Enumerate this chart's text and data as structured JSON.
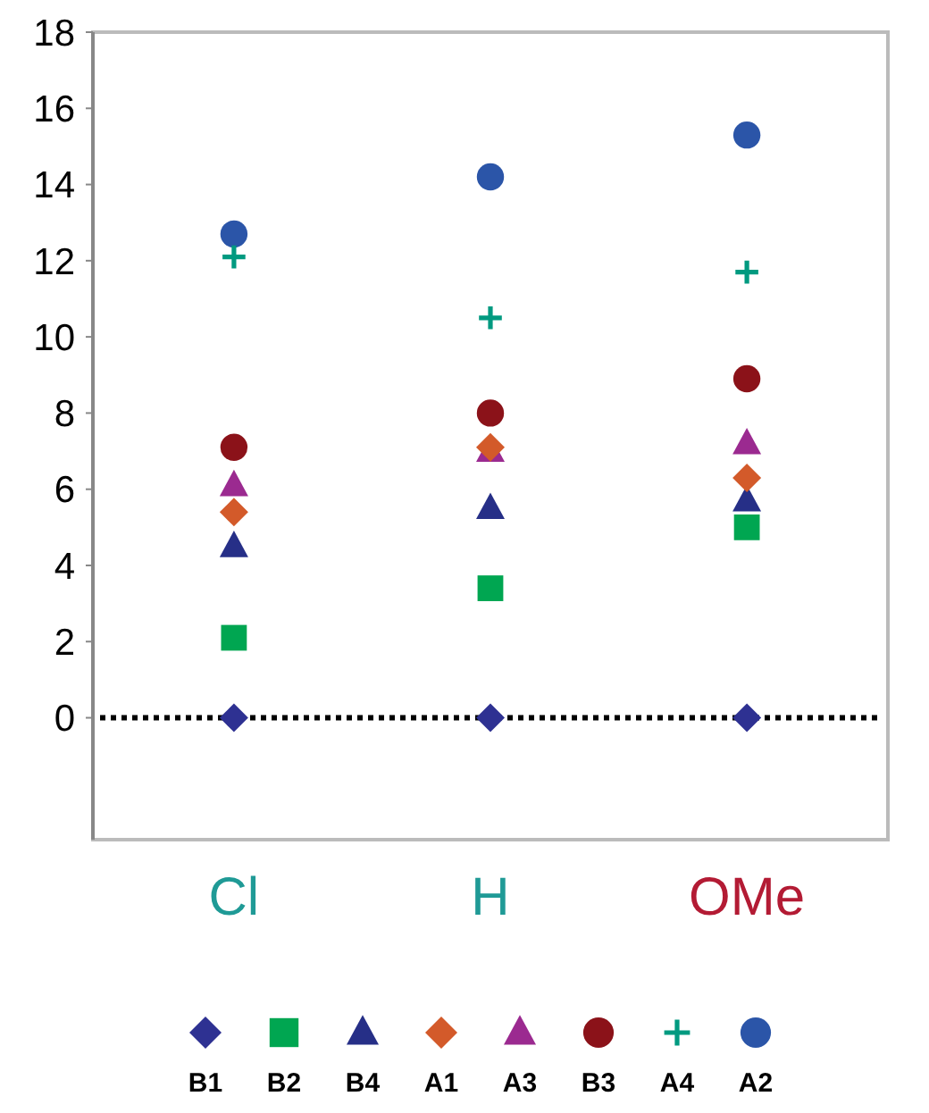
{
  "chart_data": {
    "type": "scatter",
    "categories": [
      "Cl",
      "H",
      "OMe"
    ],
    "series": [
      {
        "name": "B1",
        "color": "#2e3192",
        "marker": "diamond",
        "values": [
          0,
          0,
          0
        ]
      },
      {
        "name": "B2",
        "color": "#00a651",
        "marker": "square",
        "values": [
          2.1,
          3.4,
          5.0
        ]
      },
      {
        "name": "B4",
        "color": "#262f87",
        "marker": "triangle",
        "values": [
          4.5,
          5.5,
          5.7
        ]
      },
      {
        "name": "A1",
        "color": "#d35a2a",
        "marker": "diamond",
        "values": [
          5.4,
          7.1,
          6.3
        ]
      },
      {
        "name": "A3",
        "color": "#9b2a90",
        "marker": "triangle",
        "values": [
          6.1,
          7.0,
          7.2
        ]
      },
      {
        "name": "B3",
        "color": "#8b1219",
        "marker": "circle",
        "values": [
          7.1,
          8.0,
          8.9
        ]
      },
      {
        "name": "A4",
        "color": "#009a80",
        "marker": "cross",
        "values": [
          12.1,
          10.5,
          11.7
        ]
      },
      {
        "name": "A2",
        "color": "#2b55a8",
        "marker": "circle",
        "values": [
          12.7,
          14.2,
          15.3
        ]
      }
    ],
    "ylim": [
      -3.2,
      18
    ],
    "yticks": [
      0,
      2,
      4,
      6,
      8,
      10,
      12,
      14,
      16,
      18
    ],
    "ref_lines": [
      {
        "axis": "y",
        "value": 0,
        "color": "#000000",
        "line_style": "dotted"
      }
    ],
    "grid": false,
    "legend": "bottom"
  }
}
